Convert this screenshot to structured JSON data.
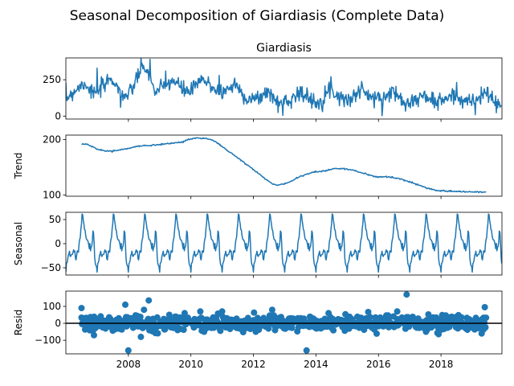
{
  "chart_data": {
    "title": "Seasonal Decomposition of Giardiasis (Complete Data)",
    "type": "line",
    "series_color": "#1f77b4",
    "x_axis": {
      "ticks": [
        2008,
        2010,
        2012,
        2014,
        2016,
        2018
      ],
      "tick_labels": [
        "2008",
        "2010",
        "2012",
        "2014",
        "2016",
        "2018"
      ],
      "xlim": [
        2006.0,
        2019.95
      ],
      "data_start": 2006.0,
      "data_end": 2019.95
    },
    "panels": [
      {
        "name": "observed",
        "type": "line",
        "title": "Giardiasis",
        "ylabel": "",
        "ylim": [
          -20,
          400
        ],
        "yticks": [
          0,
          250
        ],
        "ytick_labels": [
          "0",
          "250"
        ],
        "anchors": [
          [
            2006.0,
            120
          ],
          [
            2006.3,
            180
          ],
          [
            2006.6,
            230
          ],
          [
            2006.9,
            150
          ],
          [
            2007.2,
            200
          ],
          [
            2007.45,
            270
          ],
          [
            2007.75,
            160
          ],
          [
            2008.0,
            130
          ],
          [
            2008.35,
            300
          ],
          [
            2008.55,
            340
          ],
          [
            2008.85,
            170
          ],
          [
            2009.1,
            190
          ],
          [
            2009.4,
            250
          ],
          [
            2009.75,
            180
          ],
          [
            2010.0,
            170
          ],
          [
            2010.35,
            250
          ],
          [
            2010.7,
            200
          ],
          [
            2011.0,
            160
          ],
          [
            2011.4,
            220
          ],
          [
            2011.75,
            130
          ],
          [
            2012.05,
            110
          ],
          [
            2012.5,
            170
          ],
          [
            2012.75,
            90
          ],
          [
            2013.1,
            100
          ],
          [
            2013.45,
            170
          ],
          [
            2013.8,
            110
          ],
          [
            2014.1,
            100
          ],
          [
            2014.45,
            190
          ],
          [
            2014.8,
            130
          ],
          [
            2015.1,
            110
          ],
          [
            2015.45,
            190
          ],
          [
            2015.8,
            120
          ],
          [
            2016.1,
            120
          ],
          [
            2016.45,
            170
          ],
          [
            2016.8,
            110
          ],
          [
            2017.1,
            100
          ],
          [
            2017.45,
            140
          ],
          [
            2017.8,
            100
          ],
          [
            2018.1,
            110
          ],
          [
            2018.45,
            150
          ],
          [
            2018.8,
            100
          ],
          [
            2019.1,
            110
          ],
          [
            2019.45,
            160
          ],
          [
            2019.95,
            50
          ]
        ],
        "spikes": [
          [
            2008.7,
            390
          ],
          [
            2007.0,
            330
          ],
          [
            2009.2,
            310
          ],
          [
            2012.95,
            5
          ],
          [
            2019.1,
            10
          ],
          [
            2007.75,
            60
          ],
          [
            2017.9,
            40
          ],
          [
            2010.9,
            280
          ]
        ]
      },
      {
        "name": "trend",
        "type": "line",
        "title": "",
        "ylabel": "Trend",
        "ylim": [
          98,
          208
        ],
        "yticks": [
          100,
          200
        ],
        "ytick_labels": [
          "100",
          "200"
        ],
        "x_range": [
          2006.5,
          2019.45
        ],
        "points": [
          [
            2006.5,
            192
          ],
          [
            2006.7,
            191
          ],
          [
            2007.0,
            183
          ],
          [
            2007.3,
            179
          ],
          [
            2007.6,
            180
          ],
          [
            2008.0,
            184
          ],
          [
            2008.3,
            188
          ],
          [
            2008.8,
            190
          ],
          [
            2009.3,
            193
          ],
          [
            2009.7,
            195
          ],
          [
            2009.9,
            200
          ],
          [
            2010.2,
            203
          ],
          [
            2010.5,
            202
          ],
          [
            2010.8,
            196
          ],
          [
            2011.1,
            183
          ],
          [
            2011.5,
            167
          ],
          [
            2011.9,
            150
          ],
          [
            2012.3,
            133
          ],
          [
            2012.6,
            120
          ],
          [
            2012.8,
            118
          ],
          [
            2013.1,
            122
          ],
          [
            2013.5,
            134
          ],
          [
            2013.9,
            141
          ],
          [
            2014.3,
            144
          ],
          [
            2014.6,
            148
          ],
          [
            2015.0,
            147
          ],
          [
            2015.3,
            143
          ],
          [
            2015.6,
            138
          ],
          [
            2015.9,
            133
          ],
          [
            2016.3,
            133
          ],
          [
            2016.7,
            129
          ],
          [
            2017.0,
            124
          ],
          [
            2017.3,
            118
          ],
          [
            2017.6,
            112
          ],
          [
            2017.9,
            108
          ],
          [
            2018.3,
            107
          ],
          [
            2018.7,
            106
          ],
          [
            2019.1,
            106
          ],
          [
            2019.45,
            105
          ]
        ]
      },
      {
        "name": "seasonal",
        "type": "line",
        "title": "",
        "ylabel": "Seasonal",
        "ylim": [
          -65,
          65
        ],
        "yticks": [
          -50,
          0,
          50
        ],
        "ytick_labels": [
          "−50",
          "0",
          "50"
        ],
        "cycle_shape": [
          [
            0.0,
            -58
          ],
          [
            0.03,
            -40
          ],
          [
            0.1,
            -22
          ],
          [
            0.18,
            -30
          ],
          [
            0.26,
            -10
          ],
          [
            0.33,
            -28
          ],
          [
            0.4,
            -12
          ],
          [
            0.46,
            22
          ],
          [
            0.52,
            58
          ],
          [
            0.58,
            38
          ],
          [
            0.65,
            12
          ],
          [
            0.72,
            0
          ],
          [
            0.8,
            -15
          ],
          [
            0.88,
            28
          ],
          [
            0.93,
            -40
          ],
          [
            1.0,
            -58
          ]
        ]
      },
      {
        "name": "resid",
        "type": "scatter",
        "title": "",
        "ylabel": "Resid",
        "ylim": [
          -180,
          190
        ],
        "yticks": [
          -100,
          0,
          100
        ],
        "ytick_labels": [
          "−100",
          "0",
          "100"
        ],
        "x_range": [
          2006.5,
          2019.45
        ],
        "baseline": 0,
        "outliers": [
          [
            2006.5,
            90
          ],
          [
            2007.9,
            110
          ],
          [
            2008.5,
            80
          ],
          [
            2008.65,
            135
          ],
          [
            2008.0,
            -160
          ],
          [
            2009.8,
            60
          ],
          [
            2010.3,
            70
          ],
          [
            2011.0,
            70
          ],
          [
            2012.6,
            80
          ],
          [
            2013.7,
            -160
          ],
          [
            2016.9,
            170
          ],
          [
            2016.6,
            70
          ],
          [
            2019.4,
            95
          ],
          [
            2006.9,
            -70
          ],
          [
            2008.4,
            -80
          ],
          [
            2019.3,
            -60
          ]
        ]
      }
    ]
  }
}
